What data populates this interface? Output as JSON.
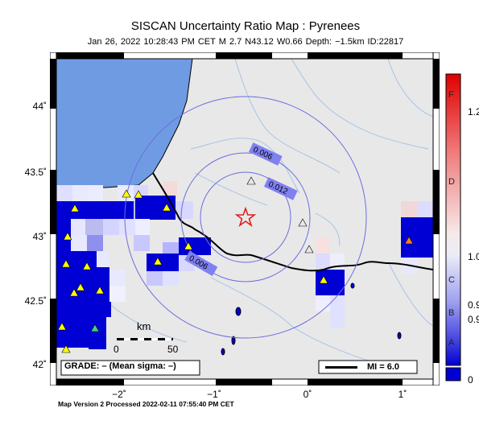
{
  "header": {
    "title": "SISCAN Uncertainty Ratio Map : Pyrenees",
    "subtitle": "Jan 26, 2022 10:28:43 PM CET   M 2.7   N43.12 W0.66   Depth: −1.5km   ID:22817"
  },
  "axes": {
    "y_ticks": [
      "44˚",
      "43.5˚",
      "43˚",
      "42.5˚",
      "42˚"
    ],
    "x_ticks": [
      "−2˚",
      "−1˚",
      "0˚",
      "1˚"
    ]
  },
  "contours": [
    "0.006",
    "0.012",
    "0.006"
  ],
  "scale": {
    "unit": "km",
    "start": "0",
    "end": "50"
  },
  "grade_box": "GRADE: – (Mean sigma: –)",
  "mi_legend": "MI = 6.0",
  "colorbar": {
    "letters": [
      "F",
      "D",
      "C",
      "B",
      "A"
    ],
    "numbers": [
      "1.2",
      "1.0",
      "0.9",
      "0.9",
      "0"
    ]
  },
  "footer": "Map Version 2 Processed 2022-02-11 07:55:40 PM CET",
  "colors": {
    "ocean": "#6f9be3",
    "land": "#e8e8e8",
    "high": "#0000d4",
    "epicenter": "#e02020",
    "rivers": "#9fc0e6"
  }
}
